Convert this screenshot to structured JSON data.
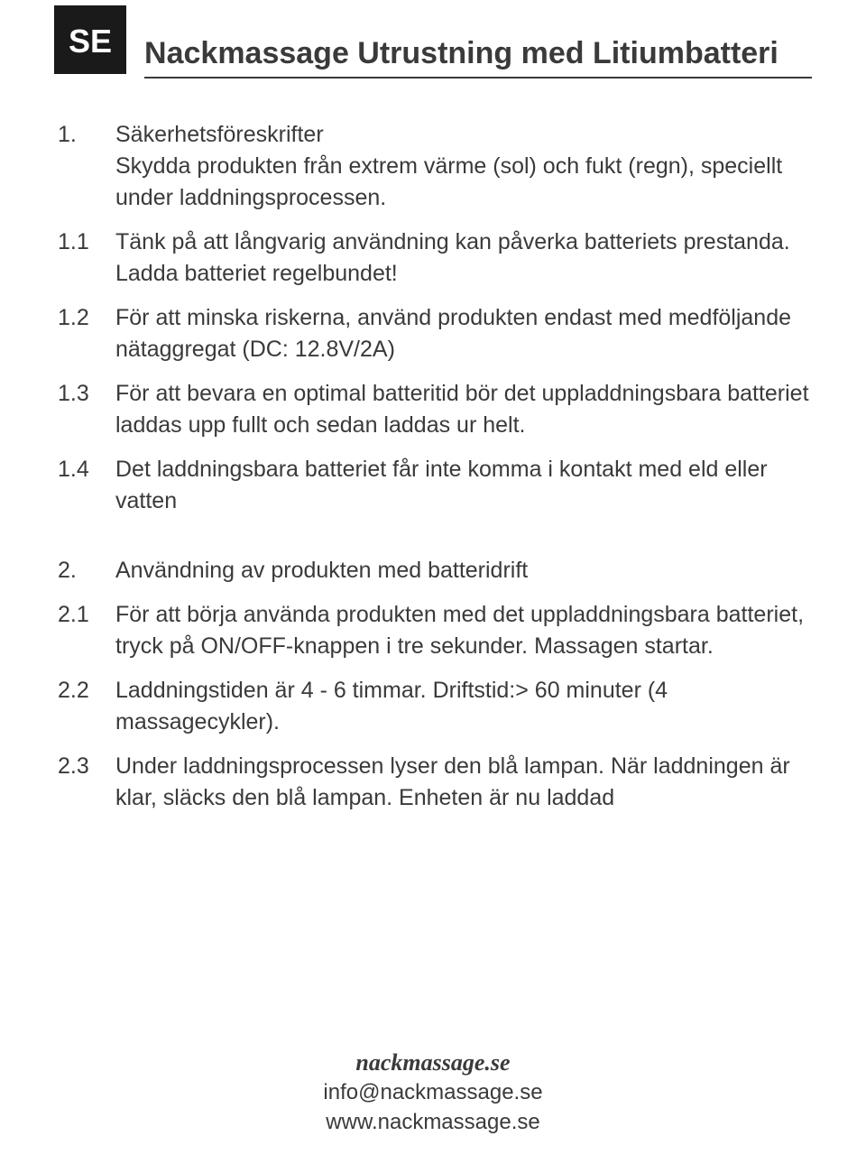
{
  "lang_code": "SE",
  "title": "Nackmassage Utrustning med Litiumbatteri",
  "sections": [
    {
      "items": [
        {
          "num": "1.",
          "text": "Säkerhetsföreskrifter\nSkydda produkten från extrem värme (sol) och fukt (regn), speciellt under laddningsprocessen."
        },
        {
          "num": "1.1",
          "text": "Tänk på att långvarig användning kan påverka batteriets prestanda. Ladda batteriet regelbundet!"
        },
        {
          "num": "1.2",
          "text": "För att minska riskerna, använd produkten endast med medföljande nätaggregat (DC: 12.8V/2A)"
        },
        {
          "num": "1.3",
          "text": "För att bevara en optimal batteritid bör det uppladdningsbara batteriet laddas upp fullt och sedan laddas ur helt."
        },
        {
          "num": "1.4",
          "text": "Det laddningsbara batteriet får inte komma i kontakt med eld eller vatten"
        }
      ]
    },
    {
      "items": [
        {
          "num": "2.",
          "text": "Användning av produkten med batteridrift"
        },
        {
          "num": "2.1",
          "text": "För att börja använda produkten med det uppladdningsbara batteriet, tryck på ON/OFF-knappen i tre sekunder. Massagen startar."
        },
        {
          "num": "2.2",
          "text": "Laddningstiden är 4 - 6 timmar. Driftstid:> 60 minuter (4 massagecykler)."
        },
        {
          "num": "2.3",
          "text": "Under laddningsprocessen lyser den blå lampan. När laddningen är klar, släcks den blå lampan. Enheten är nu laddad"
        }
      ]
    }
  ],
  "footer": {
    "brand": "nackmassage.se",
    "email": "info@nackmassage.se",
    "website": "www.nackmassage.se"
  },
  "colors": {
    "background": "#ffffff",
    "text": "#3a3a3a",
    "badge_bg": "#1a1a1a",
    "badge_text": "#ffffff"
  },
  "typography": {
    "body_fontsize": 25,
    "title_fontsize": 34,
    "badge_fontsize": 36,
    "footer_fontsize": 24
  }
}
